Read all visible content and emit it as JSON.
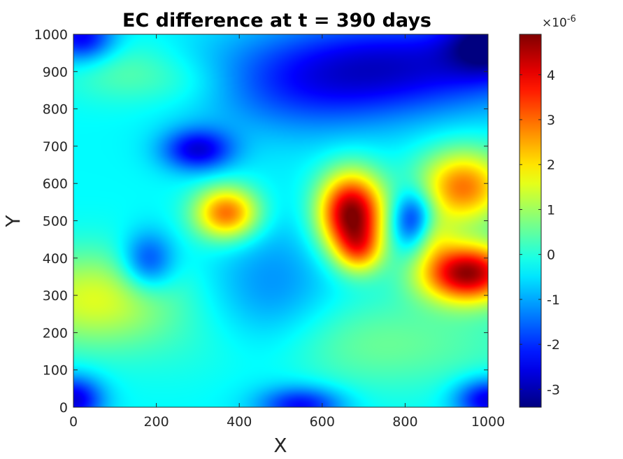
{
  "chart_data": {
    "type": "heatmap",
    "title": "EC difference at t = 390 days",
    "xlabel": "X",
    "ylabel": "Y",
    "xlim": [
      0,
      1000
    ],
    "ylim": [
      0,
      1000
    ],
    "x_ticks": [
      0,
      200,
      400,
      600,
      800,
      1000
    ],
    "y_ticks": [
      0,
      100,
      200,
      300,
      400,
      500,
      600,
      700,
      800,
      900,
      1000
    ],
    "colormap": "jet",
    "colorbar": {
      "range": [
        -3.4,
        4.9
      ],
      "ticks": [
        -3,
        -2,
        -1,
        0,
        1,
        2,
        3,
        4
      ],
      "multiplier": "×10",
      "exponent": "-6"
    },
    "background_value": -0.3,
    "features": [
      {
        "x": 670,
        "y": 520,
        "sx": 55,
        "sy": 75,
        "value": 5.2
      },
      {
        "x": 690,
        "y": 420,
        "sx": 40,
        "sy": 45,
        "value": 2.0
      },
      {
        "x": 370,
        "y": 520,
        "sx": 55,
        "sy": 50,
        "value": 3.4
      },
      {
        "x": 950,
        "y": 360,
        "sx": 80,
        "sy": 55,
        "value": 5.0
      },
      {
        "x": 940,
        "y": 590,
        "sx": 75,
        "sy": 70,
        "value": 3.2
      },
      {
        "x": 860,
        "y": 460,
        "sx": 40,
        "sy": 45,
        "value": 1.2
      },
      {
        "x": 50,
        "y": 290,
        "sx": 140,
        "sy": 90,
        "value": 1.8
      },
      {
        "x": 700,
        "y": 170,
        "sx": 280,
        "sy": 90,
        "value": 0.9
      },
      {
        "x": 120,
        "y": 900,
        "sx": 100,
        "sy": 60,
        "value": 0.7
      },
      {
        "x": 280,
        "y": 870,
        "sx": 90,
        "sy": 50,
        "value": 0.4
      },
      {
        "x": 300,
        "y": 690,
        "sx": 60,
        "sy": 40,
        "value": -2.3
      },
      {
        "x": 180,
        "y": 390,
        "sx": 45,
        "sy": 55,
        "value": -1.8
      },
      {
        "x": 820,
        "y": 500,
        "sx": 35,
        "sy": 55,
        "value": -2.3
      },
      {
        "x": 480,
        "y": 290,
        "sx": 110,
        "sy": 150,
        "value": -1.0
      },
      {
        "x": 800,
        "y": 920,
        "sx": 260,
        "sy": 90,
        "value": -2.2
      },
      {
        "x": 1000,
        "y": 980,
        "sx": 70,
        "sy": 60,
        "value": -2.2
      },
      {
        "x": 20,
        "y": 990,
        "sx": 55,
        "sy": 45,
        "value": -2.2
      },
      {
        "x": 0,
        "y": 20,
        "sx": 50,
        "sy": 45,
        "value": -2.4
      },
      {
        "x": 550,
        "y": 5,
        "sx": 70,
        "sy": 35,
        "value": -2.0
      },
      {
        "x": 1000,
        "y": 20,
        "sx": 55,
        "sy": 40,
        "value": -2.4
      },
      {
        "x": 560,
        "y": 840,
        "sx": 180,
        "sy": 90,
        "value": -1.0
      }
    ]
  }
}
